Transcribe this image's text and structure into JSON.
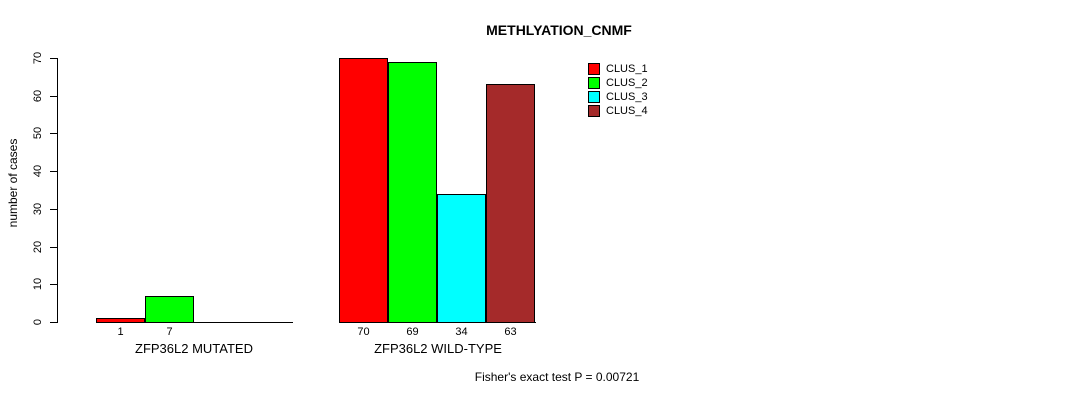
{
  "chart_data": {
    "type": "bar",
    "title": "METHLYATION_CNMF",
    "ylabel": "number of cases",
    "xlabel": "",
    "ylim": [
      0,
      70
    ],
    "yticks": [
      0,
      10,
      20,
      30,
      40,
      50,
      60,
      70
    ],
    "grid": false,
    "legend_position": "top-right",
    "categories": [
      "ZFP36L2 MUTATED",
      "ZFP36L2 WILD-TYPE"
    ],
    "series": [
      {
        "name": "CLUS_1",
        "color": "#ff0000",
        "values": [
          1,
          70
        ]
      },
      {
        "name": "CLUS_2",
        "color": "#00ff00",
        "values": [
          7,
          69
        ]
      },
      {
        "name": "CLUS_3",
        "color": "#00ffff",
        "values": [
          0,
          34
        ]
      },
      {
        "name": "CLUS_4",
        "color": "#a52a2a",
        "values": [
          0,
          63
        ]
      }
    ],
    "bar_value_labels": [
      [
        "1",
        "7",
        "",
        ""
      ],
      [
        "70",
        "69",
        "34",
        "63"
      ]
    ],
    "annotation": "Fisher's exact test P = 0.00721"
  }
}
